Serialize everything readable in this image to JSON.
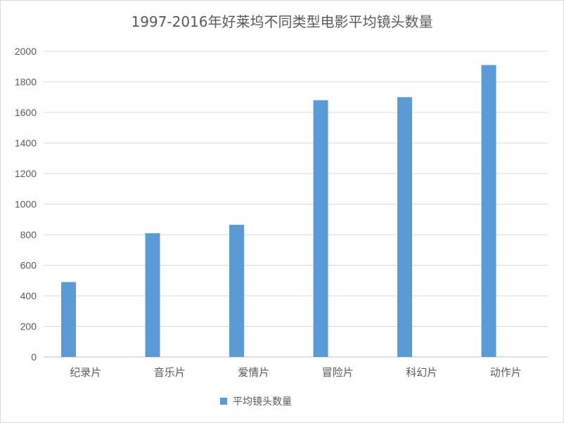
{
  "chart_data": {
    "type": "bar",
    "title": "1997-2016年好莱坞不同类型电影平均镜头数量",
    "xlabel": "",
    "ylabel": "",
    "categories": [
      "纪录片",
      "音乐片",
      "爱情片",
      "冒险片",
      "科幻片",
      "动作片"
    ],
    "series": [
      {
        "name": "平均镜头数量",
        "values": [
          490,
          810,
          865,
          1680,
          1700,
          1910
        ],
        "color": "#5B9BD5"
      }
    ],
    "ylim": [
      0,
      2000
    ],
    "yticks": [
      "0",
      "200",
      "400",
      "600",
      "800",
      "1000",
      "1200",
      "1400",
      "1600",
      "1800",
      "2000"
    ],
    "grid": true,
    "legend": "bottom"
  }
}
